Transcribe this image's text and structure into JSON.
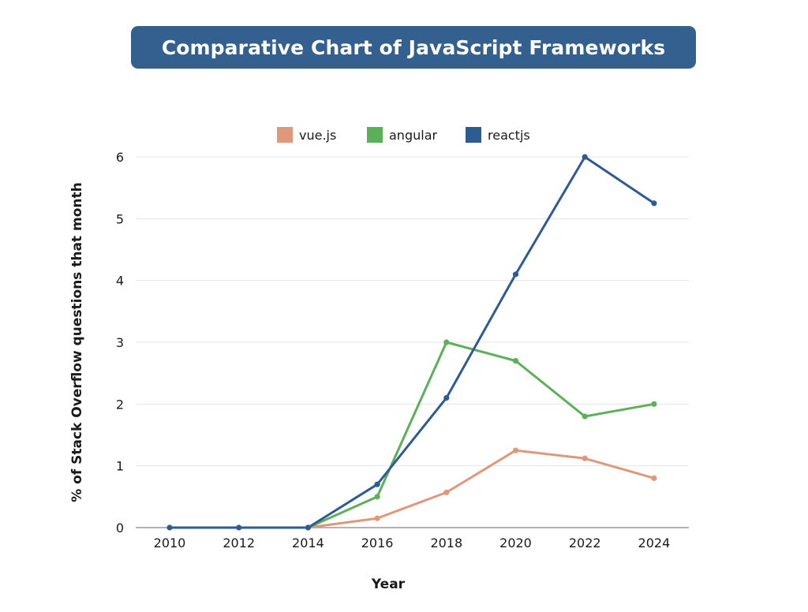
{
  "chart_data": {
    "type": "line",
    "title": "Comparative Chart of JavaScript Frameworks",
    "xlabel": "Year",
    "ylabel": "% of Stack Overflow questions that month",
    "x": [
      "2010",
      "2012",
      "2014",
      "2016",
      "2018",
      "2020",
      "2022",
      "2024"
    ],
    "ylim": [
      0,
      6
    ],
    "yticks": [
      0,
      1,
      2,
      3,
      4,
      5,
      6
    ],
    "grid": true,
    "legend_position": "top-center",
    "series": [
      {
        "name": "vue.js",
        "color": "#e0987a",
        "values": [
          null,
          null,
          0,
          0.15,
          0.57,
          1.25,
          1.12,
          0.8
        ]
      },
      {
        "name": "angular",
        "color": "#5cb05a",
        "values": [
          null,
          null,
          0,
          0.5,
          3.0,
          2.7,
          1.8,
          2.0
        ]
      },
      {
        "name": "reactjs",
        "color": "#2e5b94",
        "values": [
          0,
          0,
          0,
          0.7,
          2.1,
          4.1,
          6.0,
          5.25
        ]
      }
    ]
  }
}
